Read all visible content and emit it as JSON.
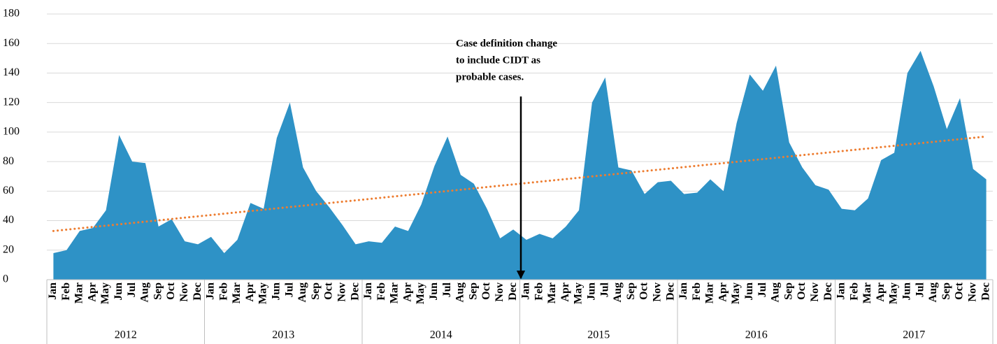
{
  "chart_data": {
    "type": "area",
    "categories": [
      "Jan",
      "Feb",
      "Mar",
      "Apr",
      "May",
      "Jun",
      "Jul",
      "Aug",
      "Sep",
      "Oct",
      "Nov",
      "Dec",
      "Jan",
      "Feb",
      "Mar",
      "Apr",
      "May",
      "Jun",
      "Jul",
      "Aug",
      "Sep",
      "Oct",
      "Nov",
      "Dec",
      "Jan",
      "Feb",
      "Mar",
      "Apr",
      "May",
      "Jun",
      "Jul",
      "Aug",
      "Sep",
      "Oct",
      "Nov",
      "Dec",
      "Jan",
      "Feb",
      "Mar",
      "Apr",
      "May",
      "Jun",
      "Jul",
      "Aug",
      "Sep",
      "Oct",
      "Nov",
      "Dec",
      "Jan",
      "Feb",
      "Mar",
      "Apr",
      "May",
      "Jun",
      "Jul",
      "Aug",
      "Sep",
      "Oct",
      "Nov",
      "Dec",
      "Jan",
      "Feb",
      "Mar",
      "Apr",
      "May",
      "Jun",
      "Jul",
      "Aug",
      "Sep",
      "Oct",
      "Nov",
      "Dec"
    ],
    "groups": [
      "2012",
      "2013",
      "2014",
      "2015",
      "2016",
      "2017"
    ],
    "values": [
      18,
      20,
      33,
      35,
      47,
      98,
      80,
      79,
      36,
      41,
      26,
      24,
      29,
      18,
      27,
      52,
      48,
      96,
      120,
      76,
      60,
      49,
      37,
      24,
      26,
      25,
      36,
      33,
      51,
      77,
      97,
      71,
      65,
      48,
      28,
      34,
      27,
      31,
      28,
      36,
      47,
      120,
      137,
      76,
      74,
      58,
      66,
      67,
      58,
      59,
      68,
      60,
      106,
      139,
      128,
      145,
      93,
      76,
      64,
      61,
      48,
      47,
      55,
      81,
      86,
      140,
      155,
      131,
      102,
      123,
      75,
      68
    ],
    "color": "#2e92c6",
    "trendline": {
      "color": "#ed7d31",
      "values": [
        33,
        97
      ]
    },
    "annotation": [
      "Case definition change",
      "to include CIDT as",
      "probable cases."
    ],
    "ylim": [
      0,
      180
    ],
    "yticks": [
      0,
      20,
      40,
      60,
      80,
      100,
      120,
      140,
      160,
      180
    ],
    "grid": true
  }
}
